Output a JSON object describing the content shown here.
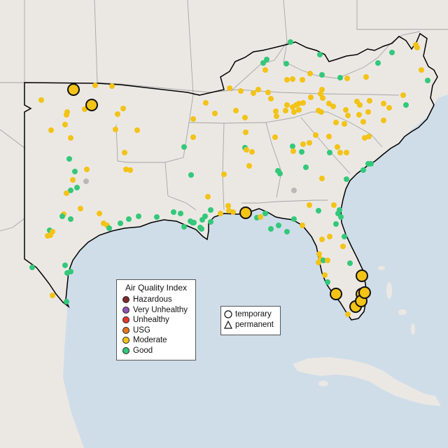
{
  "legend_aqi": {
    "title": "Air Quality Index",
    "items": [
      {
        "key": "hazardous",
        "label": "Hazardous",
        "color": "#7e2b2b"
      },
      {
        "key": "very_unhealthy",
        "label": "Very Unhealthy",
        "color": "#8e56b2"
      },
      {
        "key": "unhealthy",
        "label": "Unhealthy",
        "color": "#e8392b"
      },
      {
        "key": "usg",
        "label": "USG",
        "color": "#e8761f"
      },
      {
        "key": "moderate",
        "label": "Moderate",
        "color": "#f3c316"
      },
      {
        "key": "good",
        "label": "Good",
        "color": "#33c87a"
      }
    ]
  },
  "legend_type": {
    "items": [
      {
        "label": "temporary",
        "shape": "circle"
      },
      {
        "label": "permanent",
        "shape": "triangle"
      }
    ]
  },
  "colors": {
    "water": "#cfdde9",
    "land": "#ebe8e4",
    "no_data": "#b9b9b9",
    "region_outline": "#000000",
    "state_border": "#a5a5a5"
  },
  "large_temporary_monitors": [
    {
      "category": "moderate",
      "location": "Oklahoma north"
    },
    {
      "category": "moderate",
      "location": "Oklahoma north-central"
    },
    {
      "category": "moderate",
      "location": "Florida panhandle"
    },
    {
      "category": "moderate",
      "location": "Southwest Florida"
    },
    {
      "category": "moderate",
      "location": "Southeast Florida"
    }
  ]
}
